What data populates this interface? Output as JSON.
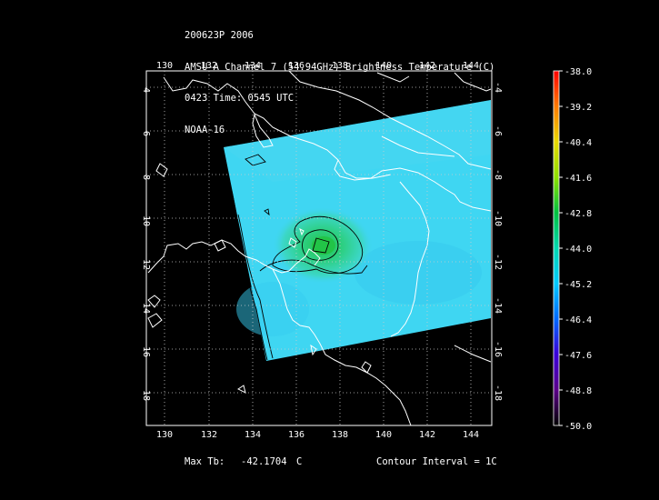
{
  "header": {
    "line1": "200623P 2006",
    "line2": "AMSU-A Channel 7 (54.94GHz) Brightness Temperature (C)",
    "line3": "0423 Time: 0545 UTC",
    "line4": "NOAA-16"
  },
  "map": {
    "lon_labels": [
      "130",
      "132",
      "134",
      "136",
      "138",
      "140",
      "142",
      "144"
    ],
    "lat_labels_left": [
      "-4",
      "-6",
      "-8",
      "-10",
      "-12",
      "-14",
      "-16",
      "-18"
    ],
    "lat_labels_right": [
      "-4",
      "-6",
      "-8",
      "-10",
      "-12",
      "-14",
      "-16",
      "-18"
    ],
    "lon_range": [
      129.5,
      145.4
    ],
    "lat_range": [
      -19.3,
      -3.0
    ],
    "background_color": "#000000",
    "coastline_color": "#ffffff",
    "swath_color": "#3fd6f2",
    "warm_core_color": "#22c447"
  },
  "colorbar": {
    "ticks": [
      "-38.0",
      "-39.2",
      "-40.4",
      "-41.6",
      "-42.8",
      "-44.0",
      "-45.2",
      "-46.4",
      "-47.6",
      "-48.8",
      "-50.0"
    ],
    "colors": [
      "#ff0000",
      "#ff7a00",
      "#e8d800",
      "#8ee000",
      "#00c040",
      "#00d6b0",
      "#00c8ff",
      "#0068ff",
      "#3a00d8",
      "#5a0088",
      "#000000"
    ]
  },
  "footer": {
    "max_tb_label": "Max Tb:",
    "max_tb_value": "-42.1704",
    "max_tb_unit": "C",
    "contour_interval": "Contour Interval = 1C"
  }
}
